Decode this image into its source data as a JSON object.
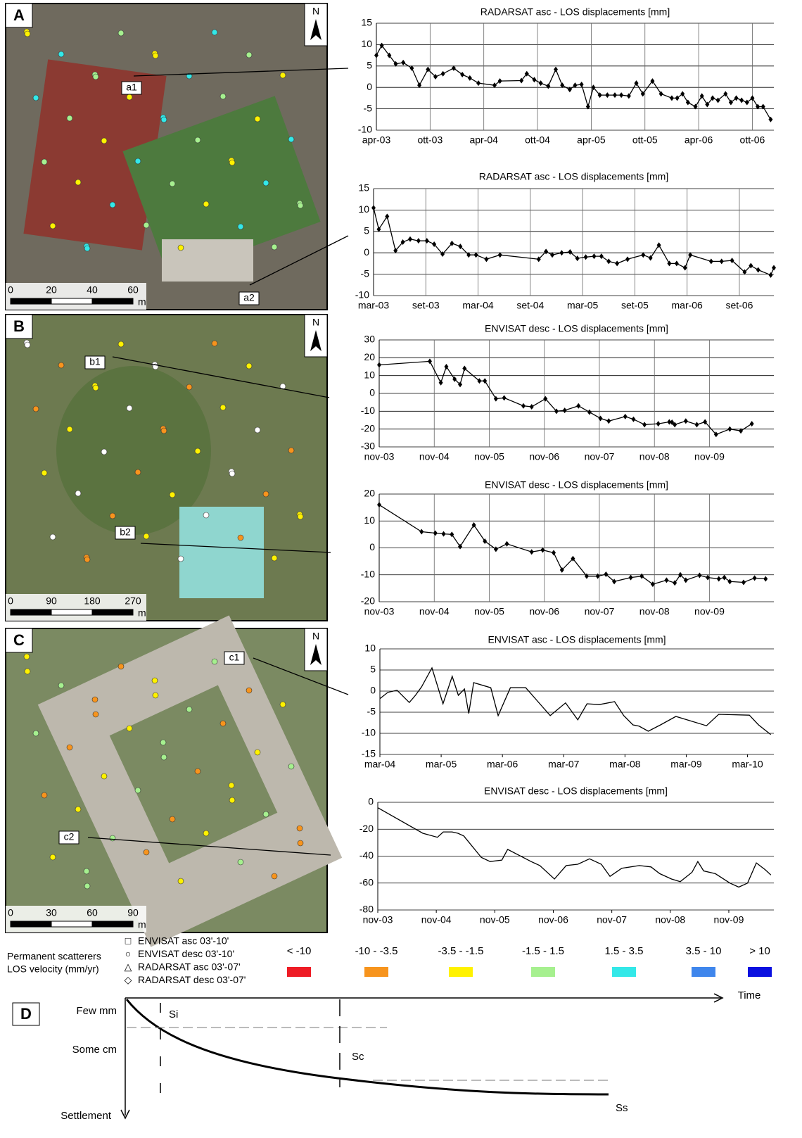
{
  "chart_data": [
    {
      "type": "line",
      "title": "RADARSAT asc - LOS displacements [mm]",
      "color": "#000",
      "marker": "diamond",
      "grid": "both",
      "x": [
        2003.25,
        2003.3,
        2003.37,
        2003.43,
        2003.5,
        2003.58,
        2003.65,
        2003.73,
        2003.8,
        2003.87,
        2003.97,
        2004.05,
        2004.12,
        2004.2,
        2004.35,
        2004.4,
        2004.6,
        2004.65,
        2004.72,
        2004.78,
        2004.85,
        2004.92,
        2004.98,
        2005.05,
        2005.1,
        2005.16,
        2005.22,
        2005.27,
        2005.33,
        2005.4,
        2005.47,
        2005.53,
        2005.6,
        2005.67,
        2005.73,
        2005.82,
        2005.9,
        2006.0,
        2006.05,
        2006.1,
        2006.15,
        2006.22,
        2006.28,
        2006.33,
        2006.38,
        2006.43,
        2006.5,
        2006.55,
        2006.6,
        2006.65,
        2006.7,
        2006.75,
        2006.8,
        2006.85,
        2006.92
      ],
      "values": [
        7.5,
        9.8,
        7.5,
        5.5,
        5.8,
        4.5,
        0.5,
        4.2,
        2.5,
        3.2,
        4.5,
        3,
        2.2,
        1,
        0.5,
        1.5,
        1.6,
        3.2,
        1.8,
        1,
        0.3,
        4.2,
        0.5,
        -0.5,
        0.5,
        0.7,
        -4.5,
        0,
        -1.8,
        -1.8,
        -1.8,
        -1.8,
        -2,
        1,
        -1.5,
        1.5,
        -1.5,
        -2.5,
        -2.5,
        -1.5,
        -3.5,
        -4.5,
        -2,
        -4,
        -2.5,
        -3,
        -1.5,
        -3.5,
        -2.5,
        -3,
        -3.5,
        -2.5,
        -4.5,
        -4.5,
        -7.5
      ],
      "xlim": [
        2003.25,
        2006.95
      ],
      "ylim": [
        -10,
        15
      ],
      "yticks": [
        -10,
        -5,
        0,
        5,
        10,
        15
      ],
      "xticks": [
        {
          "value": 2003.25,
          "label": "apr-03"
        },
        {
          "value": 2003.75,
          "label": "ott-03"
        },
        {
          "value": 2004.25,
          "label": "apr-04"
        },
        {
          "value": 2004.75,
          "label": "ott-04"
        },
        {
          "value": 2005.25,
          "label": "apr-05"
        },
        {
          "value": 2005.75,
          "label": "ott-05"
        },
        {
          "value": 2006.25,
          "label": "apr-06"
        },
        {
          "value": 2006.75,
          "label": "ott-06"
        }
      ]
    },
    {
      "type": "line",
      "title": "RADARSAT asc - LOS displacements [mm]",
      "color": "#000",
      "marker": "diamond",
      "grid": "both",
      "x": [
        2003.17,
        2003.22,
        2003.3,
        2003.38,
        2003.45,
        2003.52,
        2003.6,
        2003.68,
        2003.75,
        2003.83,
        2003.92,
        2004.0,
        2004.08,
        2004.15,
        2004.25,
        2004.38,
        2004.75,
        2004.82,
        2004.88,
        2004.97,
        2005.05,
        2005.12,
        2005.2,
        2005.28,
        2005.35,
        2005.42,
        2005.5,
        2005.6,
        2005.75,
        2005.82,
        2005.9,
        2006.0,
        2006.07,
        2006.15,
        2006.2,
        2006.4,
        2006.5,
        2006.6,
        2006.72,
        2006.78,
        2006.85,
        2006.97,
        2007.0
      ],
      "values": [
        10.5,
        5.5,
        8.5,
        0.5,
        2.5,
        3.2,
        2.8,
        2.8,
        2,
        -0.3,
        2.2,
        1.5,
        -0.5,
        -0.5,
        -1.5,
        -0.5,
        -1.5,
        0.3,
        -0.5,
        0,
        0.2,
        -1.3,
        -1,
        -0.8,
        -0.8,
        -2,
        -2.5,
        -1.5,
        -0.5,
        -1.2,
        1.8,
        -2.5,
        -2.5,
        -3.5,
        -0.5,
        -2,
        -2,
        -1.8,
        -4.5,
        -3,
        -4,
        -5.2,
        -3.5
      ],
      "xlim": [
        2003.17,
        2007.0
      ],
      "ylim": [
        -10,
        15
      ],
      "yticks": [
        -10,
        -5,
        0,
        5,
        10,
        15
      ],
      "xticks": [
        {
          "value": 2003.17,
          "label": "mar-03"
        },
        {
          "value": 2003.67,
          "label": "set-03"
        },
        {
          "value": 2004.17,
          "label": "mar-04"
        },
        {
          "value": 2004.67,
          "label": "set-04"
        },
        {
          "value": 2005.17,
          "label": "mar-05"
        },
        {
          "value": 2005.67,
          "label": "set-05"
        },
        {
          "value": 2006.17,
          "label": "mar-06"
        },
        {
          "value": 2006.67,
          "label": "set-06"
        }
      ]
    },
    {
      "type": "line",
      "title": "ENVISAT desc - LOS displacements [mm]",
      "color": "#000",
      "marker": "diamond",
      "grid": "both",
      "x": [
        2003.83,
        2004.75,
        2004.95,
        2005.05,
        2005.2,
        2005.3,
        2005.38,
        2005.65,
        2005.75,
        2005.95,
        2006.1,
        2006.45,
        2006.6,
        2006.85,
        2007.05,
        2007.2,
        2007.45,
        2007.65,
        2007.85,
        2008.0,
        2008.3,
        2008.45,
        2008.65,
        2008.9,
        2009.1,
        2009.15,
        2009.2,
        2009.4,
        2009.6,
        2009.75,
        2009.95,
        2010.2,
        2010.4,
        2010.6
      ],
      "values": [
        16,
        18,
        6,
        15,
        8,
        5,
        14,
        7,
        7,
        -3,
        -2.5,
        -7,
        -7.5,
        -3,
        -10,
        -9.5,
        -7,
        -10.5,
        -14,
        -15.5,
        -13,
        -14.5,
        -17.5,
        -17,
        -16,
        -16.2,
        -17.5,
        -15.5,
        -17.5,
        -16,
        -23,
        -20,
        -21,
        -17
      ],
      "xlim": [
        2003.83,
        2011.0
      ],
      "ylim": [
        -30,
        30
      ],
      "yticks": [
        -30,
        -20,
        -10,
        0,
        10,
        20,
        30
      ],
      "xticks": [
        {
          "value": 2003.83,
          "label": "nov-03"
        },
        {
          "value": 2004.83,
          "label": "nov-04"
        },
        {
          "value": 2005.83,
          "label": "nov-05"
        },
        {
          "value": 2006.83,
          "label": "nov-06"
        },
        {
          "value": 2007.83,
          "label": "nov-07"
        },
        {
          "value": 2008.83,
          "label": "nov-08"
        },
        {
          "value": 2009.83,
          "label": "nov-09"
        }
      ]
    },
    {
      "type": "line",
      "title": "ENVISAT desc - LOS displacements [mm]",
      "color": "#000",
      "marker": "diamond",
      "grid": "both",
      "x": [
        2003.83,
        2004.6,
        2004.85,
        2005.0,
        2005.15,
        2005.3,
        2005.55,
        2005.75,
        2005.95,
        2006.15,
        2006.6,
        2006.8,
        2007.0,
        2007.15,
        2007.35,
        2007.6,
        2007.8,
        2007.95,
        2008.1,
        2008.4,
        2008.6,
        2008.8,
        2009.05,
        2009.2,
        2009.3,
        2009.4,
        2009.65,
        2009.8,
        2010.0,
        2010.1,
        2010.2,
        2010.45,
        2010.65,
        2010.85
      ],
      "values": [
        16,
        6,
        5.5,
        5.2,
        5,
        0.5,
        8.5,
        2.5,
        -0.5,
        1.5,
        -1.5,
        -0.8,
        -1.8,
        -8.2,
        -4,
        -10.5,
        -10.5,
        -9.8,
        -12.5,
        -11,
        -10.5,
        -13.5,
        -12,
        -13,
        -10,
        -12,
        -10.2,
        -11,
        -11.5,
        -11,
        -12.5,
        -12.8,
        -11.2,
        -11.5
      ],
      "xlim": [
        2003.83,
        2011.0
      ],
      "ylim": [
        -20,
        20
      ],
      "yticks": [
        -20,
        -10,
        0,
        10,
        20
      ],
      "xticks": [
        {
          "value": 2003.83,
          "label": "nov-03"
        },
        {
          "value": 2004.83,
          "label": "nov-04"
        },
        {
          "value": 2005.83,
          "label": "nov-05"
        },
        {
          "value": 2006.83,
          "label": "nov-06"
        },
        {
          "value": 2007.83,
          "label": "nov-07"
        },
        {
          "value": 2008.83,
          "label": "nov-08"
        },
        {
          "value": 2009.83,
          "label": "nov-09"
        }
      ]
    },
    {
      "type": "line",
      "title": "ENVISAT asc - LOS displacements [mm]",
      "color": "#000",
      "marker": "none",
      "grid": "y",
      "x": [
        2004.17,
        2004.3,
        2004.45,
        2004.65,
        2004.75,
        2004.85,
        2005.02,
        2005.2,
        2005.35,
        2005.45,
        2005.55,
        2005.62,
        2005.7,
        2005.98,
        2006.1,
        2006.3,
        2006.55,
        2006.95,
        2007.2,
        2007.4,
        2007.55,
        2007.75,
        2008.0,
        2008.15,
        2008.3,
        2008.4,
        2008.55,
        2008.75,
        2009.0,
        2009.5,
        2009.7,
        2010.2,
        2010.35,
        2010.55
      ],
      "values": [
        -1.8,
        -0.3,
        0.2,
        -2.7,
        -1,
        1,
        5.5,
        -3,
        3.5,
        -1,
        0.5,
        -5.3,
        2,
        0.8,
        -5.8,
        0.8,
        0.8,
        -5.8,
        -2.8,
        -6.8,
        -3,
        -3.2,
        -2.5,
        -5.8,
        -8,
        -8.3,
        -9.5,
        -8,
        -6,
        -8.2,
        -5.5,
        -5.7,
        -8,
        -10.3
      ],
      "xlim": [
        2004.17,
        2010.6
      ],
      "ylim": [
        -15,
        10
      ],
      "yticks": [
        -15,
        -10,
        -5,
        0,
        5,
        10
      ],
      "xticks": [
        {
          "value": 2004.17,
          "label": "mar-04"
        },
        {
          "value": 2005.17,
          "label": "mar-05"
        },
        {
          "value": 2006.17,
          "label": "mar-06"
        },
        {
          "value": 2007.17,
          "label": "mar-07"
        },
        {
          "value": 2008.17,
          "label": "mar-08"
        },
        {
          "value": 2009.17,
          "label": "mar-09"
        },
        {
          "value": 2010.17,
          "label": "mar-10"
        }
      ]
    },
    {
      "type": "line",
      "title": "ENVISAT desc - LOS displacements [mm]",
      "color": "#000",
      "marker": "none",
      "grid": "y",
      "x": [
        2003.83,
        2004.6,
        2004.85,
        2004.95,
        2005.1,
        2005.2,
        2005.3,
        2005.6,
        2005.75,
        2005.95,
        2006.05,
        2006.45,
        2006.6,
        2006.85,
        2007.05,
        2007.25,
        2007.45,
        2007.65,
        2007.8,
        2008.0,
        2008.3,
        2008.5,
        2008.65,
        2008.85,
        2009.0,
        2009.2,
        2009.3,
        2009.4,
        2009.6,
        2009.85,
        2010.0,
        2010.15,
        2010.3,
        2010.45,
        2010.55
      ],
      "values": [
        -4,
        -23,
        -26,
        -22,
        -22,
        -23,
        -25,
        -41,
        -44,
        -43,
        -35,
        -44,
        -47,
        -57,
        -47,
        -46,
        -42,
        -46,
        -55,
        -49,
        -47,
        -48,
        -53,
        -57,
        -59,
        -52,
        -44,
        -51,
        -53,
        -60,
        -63,
        -60,
        -45,
        -50,
        -54
      ],
      "xlim": [
        2003.83,
        2010.6
      ],
      "ylim": [
        -80,
        0
      ],
      "yticks": [
        -80,
        -60,
        -40,
        -20,
        0
      ],
      "xticks": [
        {
          "value": 2003.83,
          "label": "nov-03"
        },
        {
          "value": 2004.83,
          "label": "nov-04"
        },
        {
          "value": 2005.83,
          "label": "nov-05"
        },
        {
          "value": 2006.83,
          "label": "nov-06"
        },
        {
          "value": 2007.83,
          "label": "nov-07"
        },
        {
          "value": 2008.83,
          "label": "nov-08"
        },
        {
          "value": 2009.83,
          "label": "nov-09"
        }
      ]
    }
  ],
  "panels": [
    {
      "letter": "A",
      "north": "N",
      "scale": [
        0,
        20,
        40,
        60
      ],
      "unit": "m",
      "points": [
        "a1",
        "a2"
      ]
    },
    {
      "letter": "B",
      "north": "N",
      "scale": [
        0,
        90,
        180,
        270
      ],
      "unit": "m",
      "points": [
        "b1",
        "b2"
      ]
    },
    {
      "letter": "C",
      "north": "N",
      "scale": [
        0,
        30,
        60,
        90
      ],
      "unit": "m",
      "points": [
        "c1",
        "c2"
      ]
    }
  ],
  "legend": {
    "title": [
      "Permanent scatterers",
      "LOS velocity (mm/yr)"
    ],
    "datasets": [
      {
        "symbol": "□",
        "label": "ENVISAT asc 03'-10'"
      },
      {
        "symbol": "○",
        "label": "ENVISAT desc 03'-10'"
      },
      {
        "symbol": "△",
        "label": "RADARSAT asc 03'-07'"
      },
      {
        "symbol": "◇",
        "label": "RADARSAT desc 03'-07'"
      }
    ],
    "classes": [
      {
        "label": "< -10",
        "color": "#ee1c25"
      },
      {
        "label": "-10 - -3.5",
        "color": "#f7941d"
      },
      {
        "label": "-3.5 - -1.5",
        "color": "#fff200"
      },
      {
        "label": "-1.5 - 1.5",
        "color": "#a6f08f"
      },
      {
        "label": "1.5 - 3.5",
        "color": "#33e8e8"
      },
      {
        "label": "3.5 - 10",
        "color": "#3f86ec"
      },
      {
        "label": "> 10",
        "color": "#0a10e0"
      }
    ]
  },
  "diagram": {
    "letter": "D",
    "x_label": "Time",
    "y_label": "Settlement",
    "levels": [
      "Few mm",
      "Some cm"
    ],
    "phases": [
      "Si",
      "Sc",
      "Ss"
    ]
  }
}
